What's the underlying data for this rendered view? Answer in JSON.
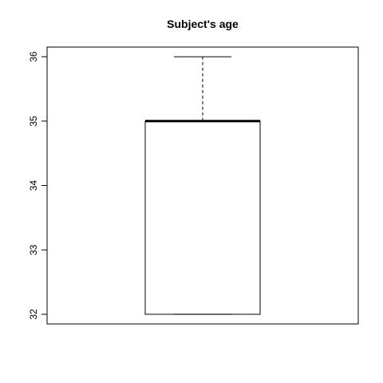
{
  "chart_data": {
    "type": "boxplot",
    "title": "Subject's age",
    "xlabel": "",
    "ylabel": "",
    "ylim": [
      31.85,
      36.15
    ],
    "yticks": [
      32,
      33,
      34,
      35,
      36
    ],
    "box": {
      "min": 32,
      "q1": 32,
      "median": 35,
      "q3": 35,
      "max": 36
    },
    "grid": false,
    "colors": {
      "stroke": "#000000",
      "background": "#ffffff"
    }
  }
}
